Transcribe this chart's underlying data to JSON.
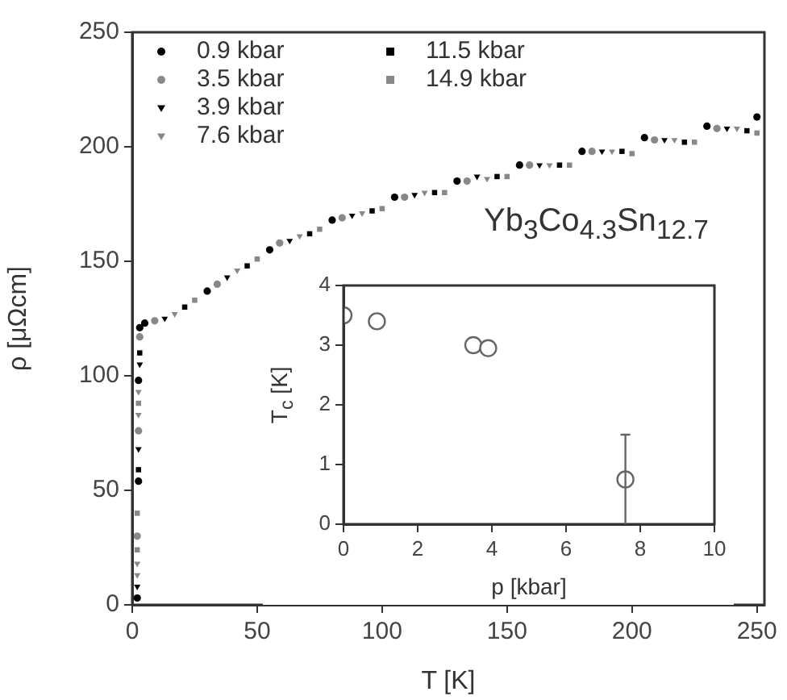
{
  "chart_data": [
    {
      "type": "scatter",
      "xlabel": "T [K]",
      "ylabel": "ρ [μΩcm]",
      "xlim": [
        0,
        253
      ],
      "ylim": [
        0,
        250
      ],
      "xticks": [
        0,
        50,
        100,
        150,
        200,
        250
      ],
      "yticks": [
        0,
        50,
        100,
        150,
        200,
        250
      ],
      "grid": false,
      "legend": "top left",
      "annotations": [
        "Yb$_{3}$Co$_{4.3}$Sn$_{12.7}$"
      ],
      "series": [
        {
          "name": "0.9 kbar",
          "color": "#000000",
          "marker": "circle",
          "x": [
            2,
            2.5,
            2.5,
            3,
            5,
            30,
            55,
            80,
            105,
            130,
            155,
            180,
            205,
            230,
            250
          ],
          "values": [
            3,
            54,
            98,
            121,
            123,
            137,
            155,
            168,
            178,
            185,
            192,
            198,
            204,
            209,
            213
          ]
        },
        {
          "name": "3.5 kbar",
          "color": "#888888",
          "marker": "circle",
          "x": [
            2,
            2.5,
            3,
            9,
            34,
            59,
            84,
            109,
            134,
            159,
            184,
            209,
            234
          ],
          "values": [
            30,
            76,
            117,
            124,
            140,
            158,
            169,
            178,
            185,
            192,
            198,
            203,
            208
          ]
        },
        {
          "name": "3.9 kbar",
          "color": "#000000",
          "marker": "triangle",
          "x": [
            2,
            2.5,
            3,
            13,
            38,
            63,
            88,
            113,
            138,
            163,
            188,
            213,
            238
          ],
          "values": [
            8,
            68,
            105,
            125,
            143,
            159,
            170,
            179,
            187,
            192,
            198,
            203,
            208
          ]
        },
        {
          "name": "7.6 kbar",
          "color": "#888888",
          "marker": "triangle",
          "x": [
            2,
            2,
            2.5,
            2.5,
            17,
            42,
            67,
            92,
            117,
            142,
            167,
            192,
            217,
            242
          ],
          "values": [
            13,
            18,
            83,
            93,
            127,
            146,
            161,
            171,
            180,
            186,
            192,
            198,
            203,
            208
          ]
        },
        {
          "name": "11.5 kbar",
          "color": "#000000",
          "marker": "square",
          "x": [
            2.5,
            3,
            21,
            46,
            71,
            96,
            121,
            146,
            171,
            196,
            221,
            246
          ],
          "values": [
            59,
            110,
            130,
            148,
            162,
            172,
            180,
            187,
            192,
            198,
            202,
            207
          ]
        },
        {
          "name": "14.9 kbar",
          "color": "#888888",
          "marker": "square",
          "x": [
            2,
            2,
            2.5,
            25,
            50,
            75,
            100,
            125,
            150,
            175,
            200,
            225,
            250
          ],
          "values": [
            24,
            40,
            88,
            133,
            151,
            164,
            173,
            180,
            187,
            192,
            197,
            202,
            206
          ]
        }
      ]
    },
    {
      "type": "scatter",
      "xlabel": "p [kbar]",
      "ylabel": "T$_{c}$ [K]",
      "xlim": [
        0,
        10
      ],
      "ylim": [
        0,
        4
      ],
      "xticks": [
        0,
        2,
        4,
        6,
        8,
        10
      ],
      "yticks": [
        0,
        1,
        2,
        3,
        4
      ],
      "grid": false,
      "marker": "circle",
      "series": [
        {
          "color": "#666666",
          "x": [
            0,
            0.9,
            3.5,
            3.9,
            7.6
          ],
          "values": [
            3.5,
            3.4,
            3.0,
            2.95,
            0.75
          ],
          "errors": [
            null,
            null,
            null,
            null,
            [
              0,
              1.5
            ]
          ]
        }
      ]
    }
  ]
}
